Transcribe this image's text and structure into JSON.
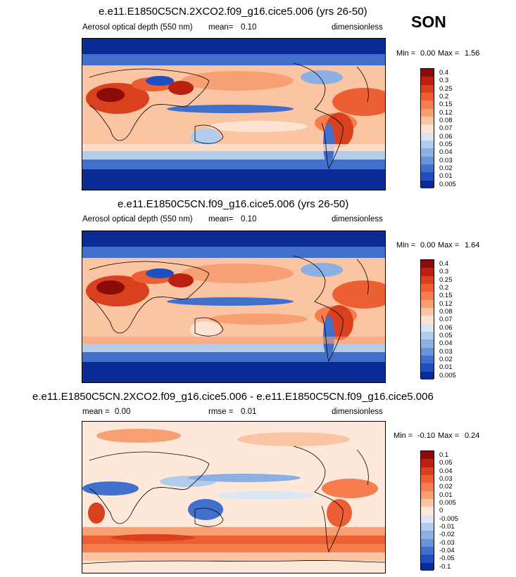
{
  "season": "SON",
  "panels": [
    {
      "title": "e.e11.E1850C5CN.2XCO2.f09_g16.cice5.006 (yrs 26-50)",
      "variable": "Aerosol optical depth (550 nm)",
      "stat_label": "mean=",
      "stat_value": "0.10",
      "units": "dimensionless",
      "min_label": "Min =",
      "min_value": "0.00",
      "max_label": "Max =",
      "max_value": "1.56",
      "colorbar_levels": [
        "0.4",
        "0.3",
        "0.25",
        "0.2",
        "0.15",
        "0.12",
        "0.08",
        "0.07",
        "0.06",
        "0.05",
        "0.04",
        "0.03",
        "0.02",
        "0.01",
        "0.005"
      ],
      "colorbar_colors": [
        "#8b0a0a",
        "#b9200f",
        "#d8401e",
        "#ec5f32",
        "#f67e4e",
        "#f99f74",
        "#fbc4a3",
        "#fde4d2",
        "#d7e5f4",
        "#b3ccec",
        "#8bb0e3",
        "#6992d8",
        "#4070cc",
        "#1f4fc0",
        "#0a2a96"
      ]
    },
    {
      "title": "e.e11.E1850C5CN.f09_g16.cice5.006 (yrs 26-50)",
      "variable": "Aerosol optical depth (550 nm)",
      "stat_label": "mean=",
      "stat_value": "0.10",
      "units": "dimensionless",
      "min_label": "Min =",
      "min_value": "0.00",
      "max_label": "Max =",
      "max_value": "1.64",
      "colorbar_levels": [
        "0.4",
        "0.3",
        "0.25",
        "0.2",
        "0.15",
        "0.12",
        "0.08",
        "0.07",
        "0.06",
        "0.05",
        "0.04",
        "0.03",
        "0.02",
        "0.01",
        "0.005"
      ],
      "colorbar_colors": [
        "#8b0a0a",
        "#b9200f",
        "#d8401e",
        "#ec5f32",
        "#f67e4e",
        "#f99f74",
        "#fbc4a3",
        "#fde4d2",
        "#d7e5f4",
        "#b3ccec",
        "#8bb0e3",
        "#6992d8",
        "#4070cc",
        "#1f4fc0",
        "#0a2a96"
      ]
    },
    {
      "title": "e.e11.E1850C5CN.2XCO2.f09_g16.cice5.006 - e.e11.E1850C5CN.f09_g16.cice5.006",
      "mean_label": "mean =",
      "mean_value": "0.00",
      "stat_label": "rmse =",
      "stat_value": "0.01",
      "units": "dimensionless",
      "min_label": "Min =",
      "min_value": "-0.10",
      "max_label": "Max =",
      "max_value": "0.24",
      "colorbar_levels": [
        "0.1",
        "0.05",
        "0.04",
        "0.03",
        "0.02",
        "0.01",
        "0.005",
        "0",
        "-0.005",
        "-0.01",
        "-0.02",
        "-0.03",
        "-0.04",
        "-0.05",
        "-0.1"
      ],
      "colorbar_colors": [
        "#8b0a0a",
        "#b9200f",
        "#d8401e",
        "#ec5f32",
        "#f67e4e",
        "#f99f74",
        "#fbc4a3",
        "#fde8da",
        "#dbe7f4",
        "#b3ccec",
        "#8bb0e3",
        "#6992d8",
        "#4070cc",
        "#1f4fc0",
        "#0a2a96"
      ]
    }
  ]
}
